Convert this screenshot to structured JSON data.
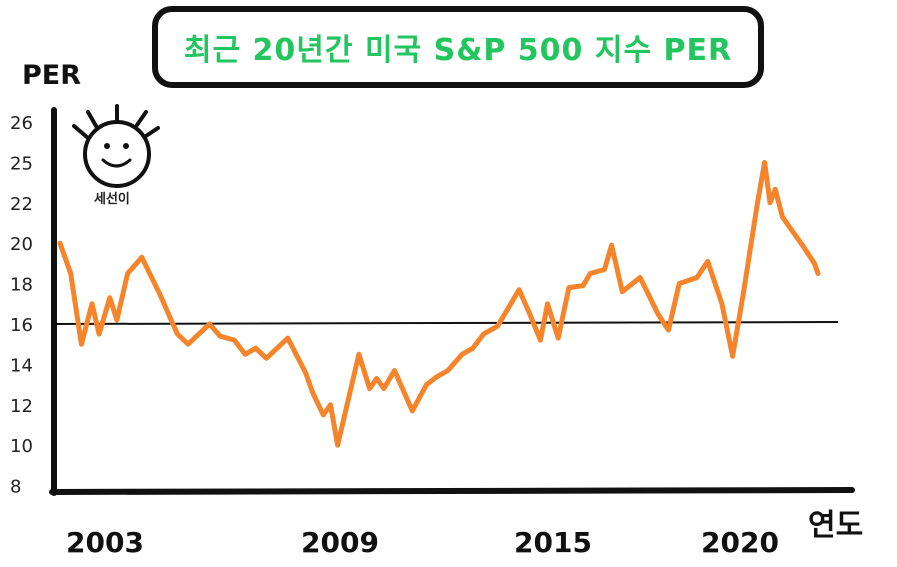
{
  "title": "최근 20년간 미국 S&P 500 지수 PER",
  "mascot_label": "세선이",
  "colors": {
    "line": "#f5842a",
    "title": "#22c55e",
    "axis": "#111111"
  },
  "chart_data": {
    "type": "line",
    "title": "최근 20년간 미국 S&P 500 지수 PER",
    "xlabel": "연도",
    "ylabel": "PER",
    "y_tick_labels": [
      "8",
      "10",
      "12",
      "14",
      "16",
      "18",
      "20",
      "22",
      "25",
      "26"
    ],
    "x_tick_labels": [
      "2003",
      "2009",
      "2015",
      "2020"
    ],
    "reference_line": {
      "y": 16
    },
    "series": [
      {
        "values": [
          {
            "x": 2002.0,
            "y": 20.0
          },
          {
            "x": 2002.3,
            "y": 18.5
          },
          {
            "x": 2002.6,
            "y": 15.0
          },
          {
            "x": 2002.9,
            "y": 17.0
          },
          {
            "x": 2003.1,
            "y": 15.5
          },
          {
            "x": 2003.4,
            "y": 17.3
          },
          {
            "x": 2003.6,
            "y": 16.2
          },
          {
            "x": 2003.9,
            "y": 18.5
          },
          {
            "x": 2004.3,
            "y": 19.3
          },
          {
            "x": 2004.8,
            "y": 17.5
          },
          {
            "x": 2005.3,
            "y": 15.5
          },
          {
            "x": 2005.6,
            "y": 15.0
          },
          {
            "x": 2006.2,
            "y": 16.0
          },
          {
            "x": 2006.5,
            "y": 15.4
          },
          {
            "x": 2006.9,
            "y": 15.2
          },
          {
            "x": 2007.2,
            "y": 14.5
          },
          {
            "x": 2007.5,
            "y": 14.8
          },
          {
            "x": 2007.8,
            "y": 14.3
          },
          {
            "x": 2008.4,
            "y": 15.3
          },
          {
            "x": 2008.9,
            "y": 13.6
          },
          {
            "x": 2009.1,
            "y": 12.6
          },
          {
            "x": 2009.4,
            "y": 11.5
          },
          {
            "x": 2009.6,
            "y": 12.0
          },
          {
            "x": 2009.8,
            "y": 10.0
          },
          {
            "x": 2010.2,
            "y": 13.0
          },
          {
            "x": 2010.4,
            "y": 14.5
          },
          {
            "x": 2010.7,
            "y": 12.8
          },
          {
            "x": 2010.9,
            "y": 13.3
          },
          {
            "x": 2011.1,
            "y": 12.8
          },
          {
            "x": 2011.4,
            "y": 13.7
          },
          {
            "x": 2011.7,
            "y": 12.5
          },
          {
            "x": 2011.9,
            "y": 11.7
          },
          {
            "x": 2012.3,
            "y": 13.0
          },
          {
            "x": 2012.6,
            "y": 13.4
          },
          {
            "x": 2012.9,
            "y": 13.7
          },
          {
            "x": 2013.3,
            "y": 14.5
          },
          {
            "x": 2013.6,
            "y": 14.8
          },
          {
            "x": 2013.9,
            "y": 15.5
          },
          {
            "x": 2014.3,
            "y": 15.9
          },
          {
            "x": 2014.6,
            "y": 16.8
          },
          {
            "x": 2014.9,
            "y": 17.7
          },
          {
            "x": 2015.2,
            "y": 16.5
          },
          {
            "x": 2015.5,
            "y": 15.2
          },
          {
            "x": 2015.7,
            "y": 17.0
          },
          {
            "x": 2016.0,
            "y": 15.3
          },
          {
            "x": 2016.3,
            "y": 17.8
          },
          {
            "x": 2016.7,
            "y": 17.9
          },
          {
            "x": 2016.9,
            "y": 18.5
          },
          {
            "x": 2017.3,
            "y": 18.7
          },
          {
            "x": 2017.5,
            "y": 19.9
          },
          {
            "x": 2017.8,
            "y": 17.6
          },
          {
            "x": 2018.3,
            "y": 18.3
          },
          {
            "x": 2018.8,
            "y": 16.5
          },
          {
            "x": 2019.1,
            "y": 15.7
          },
          {
            "x": 2019.4,
            "y": 18.0
          },
          {
            "x": 2019.9,
            "y": 18.3
          },
          {
            "x": 2020.2,
            "y": 19.1
          },
          {
            "x": 2020.6,
            "y": 17.0
          },
          {
            "x": 2020.9,
            "y": 14.4
          },
          {
            "x": 2021.2,
            "y": 17.5
          },
          {
            "x": 2021.6,
            "y": 22.0
          },
          {
            "x": 2021.8,
            "y": 25.0
          },
          {
            "x": 2021.95,
            "y": 22.0
          },
          {
            "x": 2022.1,
            "y": 23.0
          },
          {
            "x": 2022.3,
            "y": 21.3
          },
          {
            "x": 2022.7,
            "y": 20.3
          },
          {
            "x": 2022.9,
            "y": 19.8
          },
          {
            "x": 2023.2,
            "y": 19.0
          },
          {
            "x": 2023.3,
            "y": 18.5
          }
        ]
      }
    ],
    "xlim": [
      2001.5,
      2025.5
    ],
    "grid": false
  }
}
